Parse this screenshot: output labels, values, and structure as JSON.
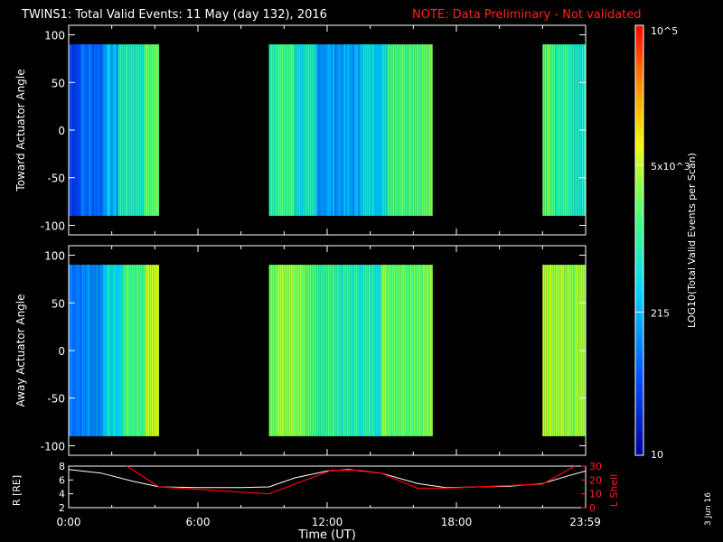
{
  "header": {
    "title": "TWINS1: Total Valid Events: 11 May (day 132), 2016",
    "note": "NOTE: Data Preliminary - Not validated"
  },
  "colors": {
    "background": "#000000",
    "axes": "#ffffff",
    "note": "#ff0000",
    "l_shell_line": "#ff0000",
    "r_line": "#ffffff"
  },
  "colorbar": {
    "label": "LOG10(Total Valid Events per Scan)",
    "scale": "log",
    "range": [
      10,
      100000
    ],
    "tick_labels": [
      "10",
      "215",
      "5x10^3",
      "10^5"
    ],
    "colormap": "rainbow (blue-cyan-green-yellow-red)"
  },
  "footer": {
    "date_stamp": "3 Jun 16",
    "xlabel": "Time (UT)",
    "x_tick_labels": [
      "0:00",
      "6:00",
      "12:00",
      "18:00",
      "23:59"
    ]
  },
  "chart_data": [
    {
      "type": "heatmap",
      "ylabel": "Toward Actuator Angle",
      "xlim_hours": [
        0,
        24
      ],
      "ylim": [
        -110,
        110
      ],
      "y_ticks": [
        100,
        50,
        0,
        -50,
        -100
      ],
      "data_y_range": [
        -90,
        90
      ],
      "segments": [
        {
          "start_hr": 0.0,
          "end_hr": 0.5,
          "log10_level": 1.6
        },
        {
          "start_hr": 0.5,
          "end_hr": 1.6,
          "log10_level": 1.9
        },
        {
          "start_hr": 1.6,
          "end_hr": 2.3,
          "log10_level": 2.3
        },
        {
          "start_hr": 2.3,
          "end_hr": 3.5,
          "log10_level": 2.9
        },
        {
          "start_hr": 3.5,
          "end_hr": 4.2,
          "log10_level": 3.3
        },
        {
          "start_hr": 9.3,
          "end_hr": 10.5,
          "log10_level": 3.1
        },
        {
          "start_hr": 10.5,
          "end_hr": 11.5,
          "log10_level": 2.7
        },
        {
          "start_hr": 11.5,
          "end_hr": 13.5,
          "log10_level": 2.2
        },
        {
          "start_hr": 13.5,
          "end_hr": 14.8,
          "log10_level": 2.6
        },
        {
          "start_hr": 14.8,
          "end_hr": 16.9,
          "log10_level": 3.3
        },
        {
          "start_hr": 22.0,
          "end_hr": 22.6,
          "log10_level": 3.4
        },
        {
          "start_hr": 22.6,
          "end_hr": 23.4,
          "log10_level": 3.0
        },
        {
          "start_hr": 23.4,
          "end_hr": 24.0,
          "log10_level": 2.7
        }
      ]
    },
    {
      "type": "heatmap",
      "ylabel": "Away Actuator Angle",
      "xlim_hours": [
        0,
        24
      ],
      "ylim": [
        -110,
        110
      ],
      "y_ticks": [
        100,
        50,
        0,
        -50,
        -100
      ],
      "data_y_range": [
        -90,
        90
      ],
      "segments": [
        {
          "start_hr": 0.0,
          "end_hr": 0.6,
          "log10_level": 2.0
        },
        {
          "start_hr": 0.6,
          "end_hr": 1.6,
          "log10_level": 2.1
        },
        {
          "start_hr": 1.6,
          "end_hr": 2.5,
          "log10_level": 2.6
        },
        {
          "start_hr": 2.5,
          "end_hr": 3.6,
          "log10_level": 3.2
        },
        {
          "start_hr": 3.6,
          "end_hr": 4.2,
          "log10_level": 3.7
        },
        {
          "start_hr": 9.3,
          "end_hr": 11.0,
          "log10_level": 3.5
        },
        {
          "start_hr": 11.0,
          "end_hr": 12.5,
          "log10_level": 3.1
        },
        {
          "start_hr": 12.5,
          "end_hr": 14.5,
          "log10_level": 2.9
        },
        {
          "start_hr": 14.5,
          "end_hr": 16.9,
          "log10_level": 3.4
        },
        {
          "start_hr": 22.0,
          "end_hr": 23.0,
          "log10_level": 3.7
        },
        {
          "start_hr": 23.0,
          "end_hr": 24.0,
          "log10_level": 3.5
        }
      ]
    },
    {
      "type": "line",
      "ylabel": "R [RE]",
      "y2label": "L Shell",
      "xlabel": "Time (UT)",
      "xlim_hours": [
        0,
        24
      ],
      "ylim": [
        2,
        8
      ],
      "y_ticks": [
        2,
        4,
        6,
        8
      ],
      "y2lim": [
        0,
        30
      ],
      "y2_ticks": [
        0,
        10,
        20,
        30
      ],
      "series": [
        {
          "name": "R [RE]",
          "color": "#ffffff",
          "x": [
            0,
            1.5,
            3,
            4.2,
            6,
            8,
            9.3,
            10.5,
            12,
            13,
            14.5,
            16.2,
            17.5,
            19,
            20.5,
            22,
            23.2,
            24
          ],
          "y": [
            7.5,
            7.0,
            5.8,
            5.0,
            4.9,
            4.9,
            5.0,
            6.3,
            7.3,
            7.5,
            7.0,
            5.5,
            4.9,
            5.0,
            5.1,
            5.5,
            6.6,
            7.3
          ]
        },
        {
          "name": "L Shell",
          "color": "#ff0000",
          "x": [
            2.7,
            4.2,
            9.3,
            12.2,
            13.5,
            14.5,
            16.2,
            17.5,
            22.0,
            23.5
          ],
          "y": [
            30,
            15,
            10,
            27,
            27,
            25,
            14,
            14,
            17,
            30
          ]
        }
      ]
    }
  ]
}
